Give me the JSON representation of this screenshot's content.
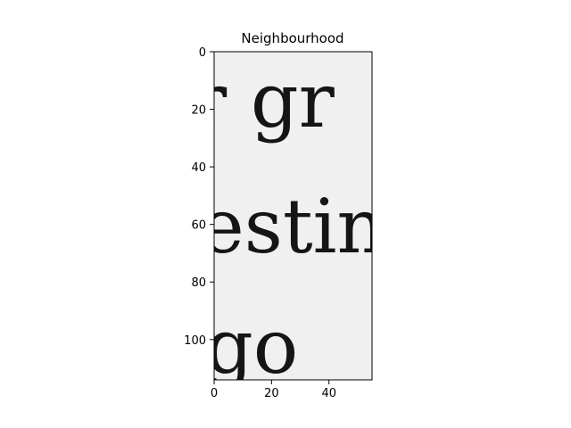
{
  "chart_data": {
    "type": "image",
    "title": "Neighbourhood",
    "xlabel": "",
    "ylabel": "",
    "image_width": 55,
    "image_height": 114,
    "xlim": [
      0,
      55
    ],
    "ylim": [
      114,
      0
    ],
    "x_ticks": [
      0,
      20,
      40
    ],
    "y_ticks": [
      0,
      20,
      40,
      60,
      80,
      100
    ],
    "grid": false,
    "legend": "none",
    "image_text_lines": [
      {
        "text": "r gr",
        "baseline": 44
      },
      {
        "text": "estin",
        "baseline": 68
      },
      {
        "text": "go",
        "baseline": 112
      }
    ],
    "colors": {
      "background": "#ffffff",
      "image_paper": "#f0f0f0",
      "ink": "#151515",
      "axis": "#000000"
    }
  }
}
